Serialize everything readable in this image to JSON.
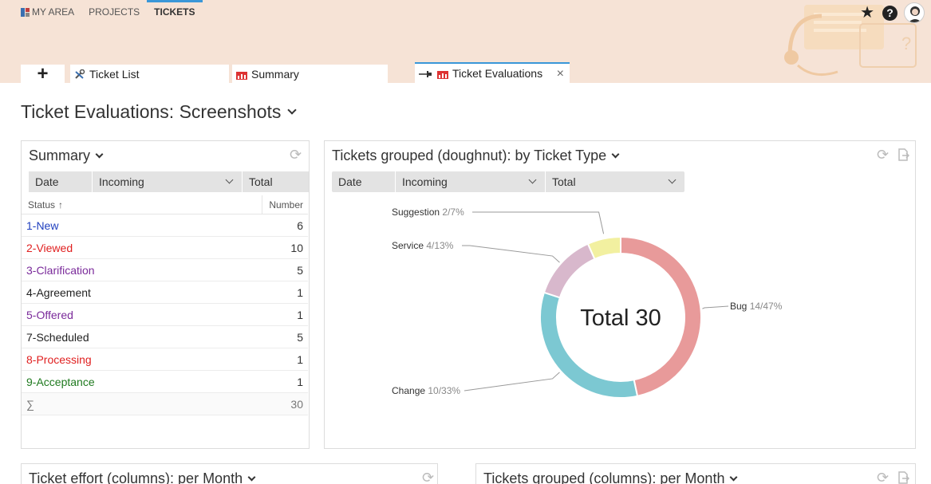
{
  "topnav": {
    "myarea": "MY AREA",
    "projects": "PROJECTS",
    "tickets": "TICKETS"
  },
  "tabs": {
    "plus": "+",
    "ticket_list": "Ticket List",
    "summary": "Summary",
    "evaluations": "Ticket Evaluations",
    "close": "×"
  },
  "page_title": "Ticket Evaluations: Screenshots",
  "summary_panel": {
    "title": "Summary",
    "filters": [
      "Date",
      "Incoming",
      "Total"
    ],
    "col_status": "Status",
    "col_number": "Number",
    "rows": [
      {
        "status": "1-New",
        "number": "6",
        "color": "#1f3fbf"
      },
      {
        "status": "2-Viewed",
        "number": "10",
        "color": "#e02020"
      },
      {
        "status": "3-Clarification",
        "number": "5",
        "color": "#7a2a9a"
      },
      {
        "status": "4-Agreement",
        "number": "1",
        "color": "#222222"
      },
      {
        "status": "5-Offered",
        "number": "1",
        "color": "#7a2a9a"
      },
      {
        "status": "7-Scheduled",
        "number": "5",
        "color": "#222222"
      },
      {
        "status": "8-Processing",
        "number": "1",
        "color": "#e02020"
      },
      {
        "status": "9-Acceptance",
        "number": "1",
        "color": "#1f7a1f"
      }
    ],
    "sum_symbol": "∑",
    "sum_value": "30"
  },
  "doughnut_panel": {
    "title": "Tickets grouped (doughnut): by Ticket Type",
    "filters": [
      "Date",
      "Incoming",
      "Total"
    ]
  },
  "chart_data": {
    "type": "pie",
    "center_label": "Total 30",
    "slices": [
      {
        "name": "Bug",
        "value": 14,
        "label": "14/47%",
        "color": "#e89a9a"
      },
      {
        "name": "Change",
        "value": 10,
        "label": "10/33%",
        "color": "#7cc8d2"
      },
      {
        "name": "Service",
        "value": 4,
        "label": "4/13%",
        "color": "#d8b8cc"
      },
      {
        "name": "Suggestion",
        "value": 2,
        "label": "2/7%",
        "color": "#f2f0a0"
      }
    ]
  },
  "bottom_left_panel": {
    "title": "Ticket effort (columns): per Month"
  },
  "bottom_right_panel": {
    "title": "Tickets grouped (columns): per Month"
  }
}
